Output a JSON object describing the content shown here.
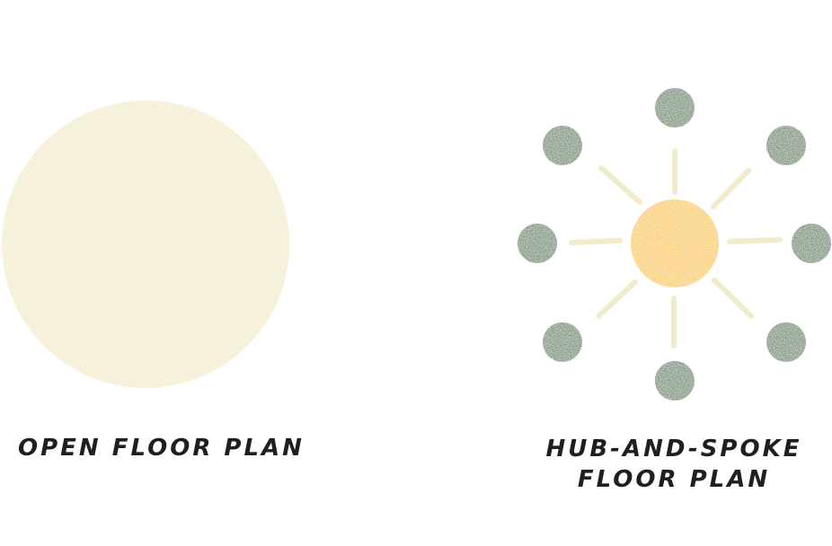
{
  "open_plan": {
    "label": "OPEN FLOOR PLAN"
  },
  "hub_plan": {
    "label_line1": "HUB-AND-SPOKE",
    "label_line2": "FLOOR PLAN"
  },
  "colors": {
    "background": "#ffffff",
    "open_circle": "#f2ebc9",
    "hub": "#fbc73a",
    "spoke": "#f2ebc9",
    "satellite": "#5c7f5b",
    "text": "#1f1f1f"
  }
}
